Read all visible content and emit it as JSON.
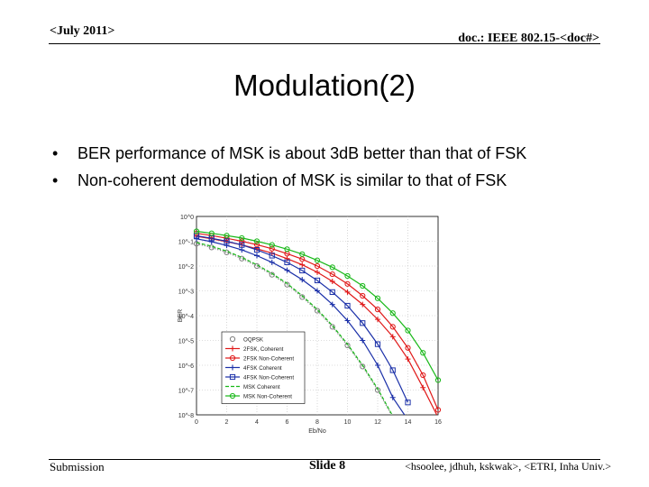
{
  "header": {
    "date": "<July 2011>",
    "doc": "doc.: IEEE 802.15-<doc#>"
  },
  "slide": {
    "title": "Modulation(2)",
    "bullets": [
      "BER performance of MSK is about 3dB better than that of FSK",
      "Non-coherent demodulation of MSK is similar to that of FSK"
    ],
    "bullet_symbol": "•"
  },
  "footer": {
    "left": "Submission",
    "center": "Slide 8",
    "right": "<hsoolee, jdhuh, kskwak>, <ETRI, Inha Univ.>"
  },
  "chart_data": {
    "type": "line",
    "xlabel": "Eb/No",
    "ylabel": "BER",
    "xlim": [
      0,
      16
    ],
    "ylim_exp": [
      -8,
      0
    ],
    "x_ticks": [
      "0",
      "2",
      "4",
      "6",
      "8",
      "10",
      "12",
      "14",
      "16"
    ],
    "y_ticks": [
      "10^0",
      "10^-1",
      "10^-2",
      "10^-3",
      "10^-4",
      "10^-5",
      "10^-6",
      "10^-7",
      "10^-8"
    ],
    "grid": true,
    "legend_position": "bottom-left",
    "x": [
      0,
      1,
      2,
      3,
      4,
      5,
      6,
      7,
      8,
      9,
      10,
      11,
      12,
      13,
      14,
      15,
      16
    ],
    "series": [
      {
        "name": "OQPSK",
        "color": "#808080",
        "style": "dotted",
        "marker": "circle-open",
        "log10_ber": [
          -1.1,
          -1.25,
          -1.45,
          -1.7,
          -2.0,
          -2.35,
          -2.75,
          -3.25,
          -3.8,
          -4.45,
          -5.2,
          -6.05,
          -7.0,
          -8.1,
          null,
          null,
          null
        ]
      },
      {
        "name": "2FSK, Coherent",
        "color": "#e01818",
        "style": "solid",
        "marker": "plus",
        "log10_ber": [
          -0.8,
          -0.9,
          -1.02,
          -1.15,
          -1.3,
          -1.48,
          -1.7,
          -1.95,
          -2.25,
          -2.62,
          -3.05,
          -3.55,
          -4.15,
          -4.85,
          -5.75,
          -6.9,
          -8.1
        ]
      },
      {
        "name": "2FSK Non-Coherent",
        "color": "#e01818",
        "style": "solid",
        "marker": "circle-open",
        "log10_ber": [
          -0.68,
          -0.77,
          -0.88,
          -1.0,
          -1.14,
          -1.3,
          -1.5,
          -1.72,
          -2.0,
          -2.33,
          -2.72,
          -3.2,
          -3.75,
          -4.45,
          -5.3,
          -6.4,
          -7.8
        ]
      },
      {
        "name": "4FSK Coherent",
        "color": "#1a2fa8",
        "style": "solid",
        "marker": "plus",
        "log10_ber": [
          -0.9,
          -1.02,
          -1.17,
          -1.35,
          -1.58,
          -1.85,
          -2.17,
          -2.55,
          -3.0,
          -3.55,
          -4.2,
          -5.0,
          -6.0,
          -7.3,
          -8.2,
          null,
          null
        ]
      },
      {
        "name": "4FSK Non-Coherent",
        "color": "#1a2fa8",
        "style": "solid",
        "marker": "square-open",
        "log10_ber": [
          -0.78,
          -0.88,
          -1.0,
          -1.15,
          -1.35,
          -1.58,
          -1.85,
          -2.18,
          -2.58,
          -3.05,
          -3.6,
          -4.3,
          -5.15,
          -6.2,
          -7.5,
          null,
          null
        ]
      },
      {
        "name": "MSK Coherent",
        "color": "#18b818",
        "style": "dashed",
        "marker": "none",
        "log10_ber": [
          -1.05,
          -1.2,
          -1.4,
          -1.65,
          -1.95,
          -2.3,
          -2.7,
          -3.2,
          -3.75,
          -4.4,
          -5.15,
          -6.0,
          -6.95,
          -8.05,
          null,
          null,
          null
        ]
      },
      {
        "name": "MSK Non-Coherent",
        "color": "#18b818",
        "style": "solid",
        "marker": "circle-open",
        "log10_ber": [
          -0.6,
          -0.68,
          -0.77,
          -0.87,
          -1.0,
          -1.15,
          -1.32,
          -1.52,
          -1.77,
          -2.05,
          -2.4,
          -2.8,
          -3.3,
          -3.9,
          -4.6,
          -5.5,
          -6.6
        ]
      }
    ]
  }
}
